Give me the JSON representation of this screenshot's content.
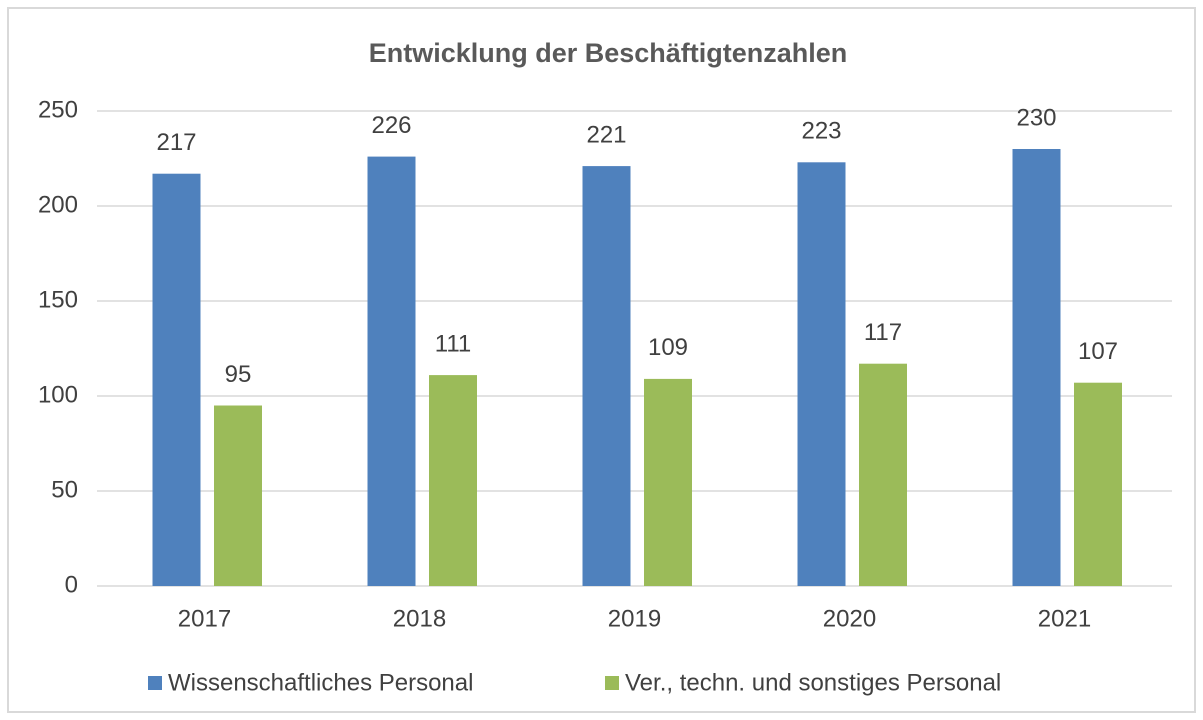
{
  "chart_data": {
    "type": "bar",
    "title": "Entwicklung der Beschäftigtenzahlen",
    "categories": [
      "2017",
      "2018",
      "2019",
      "2020",
      "2021"
    ],
    "series": [
      {
        "name": "Wissenschaftliches Personal",
        "color": "#4f81bd",
        "values": [
          217,
          226,
          221,
          223,
          230
        ]
      },
      {
        "name": "Ver., techn. und sonstiges Personal",
        "color": "#9bbb59",
        "values": [
          95,
          111,
          109,
          117,
          107
        ]
      }
    ],
    "ylim": [
      0,
      250
    ],
    "yticks": [
      0,
      50,
      100,
      150,
      200,
      250
    ],
    "grid": true,
    "legend": "bottom"
  }
}
